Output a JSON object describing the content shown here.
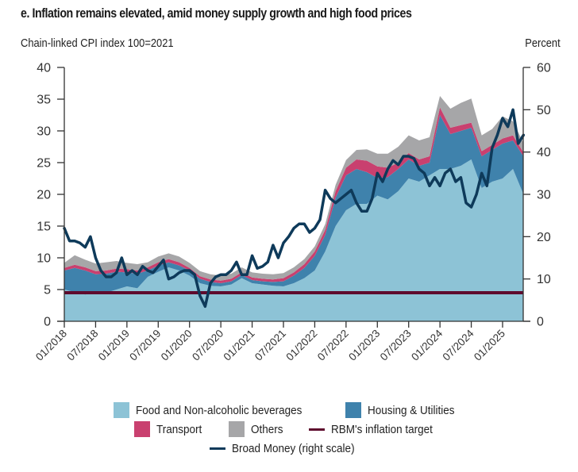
{
  "chart_data": {
    "type": "area",
    "title": "e. Inflation remains elevated, amid money supply growth and high food prices",
    "left_axis_label": "Chain-linked CPI index 100=2021",
    "right_axis_label": "Percent",
    "left_ylim": [
      0,
      40
    ],
    "right_ylim": [
      0,
      60
    ],
    "left_ticks": [
      "0",
      "5",
      "10",
      "15",
      "20",
      "25",
      "30",
      "35",
      "40"
    ],
    "right_ticks": [
      "0",
      "10",
      "20",
      "30",
      "40",
      "50",
      "60"
    ],
    "x_tick_labels": [
      "01/2018",
      "07/2018",
      "01/2019",
      "07/2019",
      "01/2020",
      "07/2020",
      "01/2021",
      "07/2021",
      "01/2022",
      "07/2022",
      "01/2023",
      "07/2023",
      "01/2024",
      "07/2024",
      "01/2025"
    ],
    "x_start": "01/2018",
    "x_months_total": 88,
    "grid": false,
    "legend_position": "bottom",
    "stack_months": [
      0,
      2,
      4,
      6,
      8,
      10,
      12,
      14,
      16,
      18,
      20,
      22,
      24,
      26,
      28,
      30,
      32,
      34,
      36,
      38,
      40,
      42,
      44,
      46,
      48,
      50,
      52,
      54,
      56,
      58,
      60,
      62,
      64,
      66,
      68,
      70,
      72,
      74,
      76,
      78,
      80,
      82,
      84,
      86,
      88
    ],
    "series": [
      {
        "name": "Food and Non-alcoholic beverages",
        "color": "#8dc3d6",
        "values": [
          5.0,
          4.6,
          4.2,
          4.5,
          4.5,
          5.0,
          5.5,
          5.2,
          7.0,
          7.8,
          8.5,
          8.0,
          7.2,
          6.0,
          5.6,
          5.5,
          5.8,
          6.8,
          6.0,
          5.8,
          5.6,
          5.5,
          6.0,
          6.8,
          8.0,
          11.0,
          15.0,
          17.5,
          18.5,
          18.5,
          19.8,
          19.2,
          20.5,
          22.5,
          22.0,
          23.0,
          24.0,
          24.0,
          24.5,
          25.5,
          21.0,
          22.0,
          22.5,
          24.0,
          20.0
        ]
      },
      {
        "name": "Housing & Utilities",
        "color": "#3f82ac",
        "values": [
          3.0,
          3.8,
          3.8,
          2.9,
          3.0,
          2.8,
          2.2,
          2.3,
          1.0,
          1.0,
          0.8,
          0.8,
          0.8,
          0.7,
          0.6,
          0.5,
          0.5,
          0.5,
          0.5,
          0.5,
          0.6,
          0.8,
          1.2,
          1.6,
          2.3,
          2.6,
          4.5,
          5.5,
          5.5,
          5.0,
          2.8,
          3.5,
          3.5,
          3.0,
          2.5,
          2.0,
          8.5,
          5.5,
          5.5,
          5.0,
          5.0,
          5.0,
          5.5,
          4.5,
          6.0
        ]
      },
      {
        "name": "Transport",
        "color": "#c9406f",
        "values": [
          0.4,
          0.5,
          0.5,
          0.5,
          0.5,
          0.5,
          0.5,
          0.5,
          0.5,
          0.5,
          0.5,
          0.5,
          0.4,
          0.4,
          0.4,
          0.4,
          0.4,
          0.4,
          0.4,
          0.4,
          0.4,
          0.5,
          0.5,
          0.6,
          0.7,
          0.8,
          1.0,
          1.2,
          1.5,
          1.8,
          1.8,
          1.5,
          1.0,
          1.0,
          1.0,
          1.0,
          1.2,
          1.0,
          0.9,
          0.8,
          0.8,
          0.8,
          0.8,
          0.8,
          0.6
        ]
      },
      {
        "name": "Others",
        "color": "#a6a6a8",
        "values": [
          0.8,
          1.5,
          1.2,
          1.2,
          1.3,
          1.2,
          1.0,
          1.0,
          0.8,
          0.9,
          0.9,
          0.9,
          0.8,
          0.8,
          0.8,
          0.8,
          0.8,
          0.8,
          0.8,
          0.8,
          0.8,
          0.8,
          0.8,
          0.8,
          0.8,
          0.9,
          1.0,
          1.2,
          1.5,
          1.8,
          2.0,
          2.2,
          2.5,
          2.8,
          3.0,
          3.0,
          1.8,
          3.0,
          3.5,
          3.8,
          2.5,
          2.5,
          3.5,
          2.2,
          1.5
        ]
      }
    ],
    "rbm_target": {
      "name": "RBM's inflation target",
      "color": "#5e0a2d",
      "value": 4.5
    },
    "broad_money": {
      "name": "Broad Money (right scale)",
      "color": "#0e3a5a",
      "axis": "right",
      "months": [
        0,
        1,
        2,
        3,
        4,
        5,
        6,
        7,
        8,
        9,
        10,
        11,
        12,
        13,
        14,
        15,
        16,
        17,
        18,
        19,
        20,
        21,
        22,
        23,
        24,
        25,
        26,
        27,
        28,
        29,
        30,
        31,
        32,
        33,
        34,
        35,
        36,
        37,
        38,
        39,
        40,
        41,
        42,
        43,
        44,
        45,
        46,
        47,
        48,
        49,
        50,
        51,
        52,
        53,
        54,
        55,
        56,
        57,
        58,
        59,
        60,
        61,
        62,
        63,
        64,
        65,
        66,
        67,
        68,
        69,
        70,
        71,
        72,
        73,
        74,
        75,
        76,
        77,
        78,
        79,
        80,
        81,
        82,
        83,
        84,
        85,
        86,
        87,
        88
      ],
      "values": [
        22,
        19,
        19,
        18.5,
        17.5,
        20,
        15,
        12,
        10.5,
        10.5,
        11.5,
        15,
        11,
        12,
        11,
        13,
        12,
        11.5,
        13,
        14.5,
        10,
        10.5,
        11.5,
        12,
        12,
        11,
        6,
        3.5,
        9,
        10.5,
        11,
        11,
        12,
        14,
        11,
        11,
        15.5,
        12.5,
        13,
        14,
        18,
        15,
        18.5,
        20,
        22,
        23,
        23,
        21,
        22,
        24,
        31,
        29,
        28,
        29,
        30,
        31,
        28,
        26,
        26,
        29,
        35,
        33,
        36,
        38,
        37,
        39,
        39,
        38.5,
        36,
        35,
        32,
        34,
        32,
        35,
        36,
        33,
        34,
        28,
        27,
        30,
        35,
        32,
        41,
        44,
        48,
        46,
        50,
        42,
        44
      ]
    },
    "legend": [
      {
        "label": "Food and Non-alcoholic beverages",
        "kind": "swatch",
        "color": "#8dc3d6"
      },
      {
        "label": "Housing & Utilities",
        "kind": "swatch",
        "color": "#3f82ac"
      },
      {
        "label": "Transport",
        "kind": "swatch",
        "color": "#c9406f"
      },
      {
        "label": "Others",
        "kind": "swatch",
        "color": "#a6a6a8"
      },
      {
        "label": "RBM's inflation target",
        "kind": "line",
        "color": "#5e0a2d"
      },
      {
        "label": "Broad Money (right scale)",
        "kind": "line",
        "color": "#0e3a5a"
      }
    ]
  }
}
